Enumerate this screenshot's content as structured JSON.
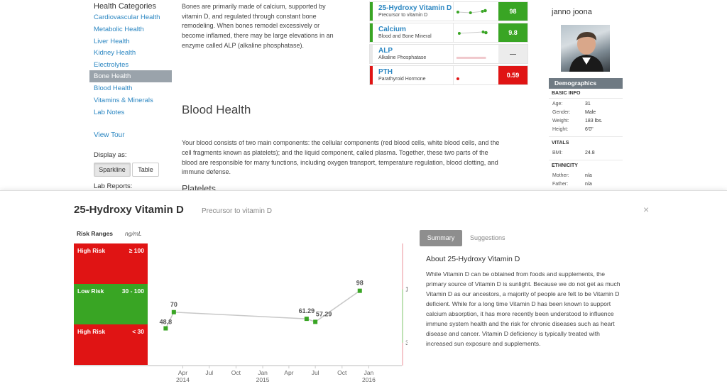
{
  "sidebar": {
    "heading": "Health Categories",
    "items": [
      "Cardiovascular Health",
      "Metabolic Health",
      "Liver Health",
      "Kidney Health",
      "Electrolytes",
      "Bone Health",
      "Blood Health",
      "Vitamins & Minerals",
      "Lab Notes"
    ],
    "view_tour": "View Tour",
    "display_as": "Display as:",
    "sparkline": "Sparkline",
    "table": "Table",
    "lab_reports": "Lab Reports:"
  },
  "main": {
    "bone_lines": [
      "Bones are primarily made of calcium, supported by",
      "vitamin D, and regulated through constant bone",
      "remodeling. When bones remodel excessively or",
      "become inflamed, there may be large elevations in an",
      "enzyme called ALP (alkaline phosphatase)."
    ],
    "blood_title": "Blood Health",
    "blood_lines": [
      "Your blood consists of two main components: the cellular components (red blood cells, white blood cells, and the",
      "cell fragments known as platelets); and the liquid component, called plasma. Together, these two parts of the",
      "blood are responsible for many functions, including oxygen transport, temperature regulation, blood clotting, and",
      "immune defense."
    ],
    "platelets": "Platelets"
  },
  "markers": [
    {
      "name": "25-Hydroxy Vitamin D",
      "desc": "Precursor to vitamin D",
      "value": "98",
      "status": "#39a524"
    },
    {
      "name": "Calcium",
      "desc": "Blood and Bone Mineral",
      "value": "9.8",
      "status": "#39a524"
    },
    {
      "name": "ALP",
      "desc": "Alkaline Phosphatase",
      "value": "—",
      "status": "#e8e8e8"
    },
    {
      "name": "PTH",
      "desc": "Parathyroid Hormone",
      "value": "0.59",
      "status": "#e01414"
    }
  ],
  "profile": {
    "name": "janno joona",
    "demographics": "Demographics",
    "basic_info": "BASIC INFO",
    "rows": [
      [
        "Age:",
        "31"
      ],
      [
        "Gender:",
        "Male"
      ],
      [
        "Weight:",
        "183 lbs."
      ],
      [
        "Height:",
        "6'0\""
      ]
    ],
    "vitals": "VITALS",
    "bmi": [
      "BMI:",
      "24.8"
    ],
    "ethnicity": "ETHNICITY",
    "eth_rows": [
      [
        "Mother:",
        "n/a"
      ],
      [
        "Father:",
        "n/a"
      ]
    ]
  },
  "detail": {
    "title": "25-Hydroxy Vitamin D",
    "subtitle": "Precursor to vitamin D",
    "close": "×",
    "risk_title": "Risk Ranges",
    "unit": "ng/mL",
    "bands": [
      {
        "label": "High Risk",
        "range": "≥ 100",
        "color": "#e01414"
      },
      {
        "label": "Low Risk",
        "range": "30 - 100",
        "color": "#39a524"
      },
      {
        "label": "High Risk",
        "range": "< 30",
        "color": "#e01414"
      }
    ],
    "tabs": [
      "Summary",
      "Suggestions"
    ],
    "about_title": "About 25-Hydroxy Vitamin D",
    "about_lines": [
      "While Vitamin D can be obtained from foods and supplements, the",
      "primary source of Vitamin D is sunlight. Because we do not get as much",
      "Vitamin D as our ancestors, a majority of people are felt to be Vitamin D",
      "deficient. While for a long time Vitamin D has been known to support",
      "calcium absorption, it has more recently been understood to influence",
      "immune system health and the risk for chronic diseases such as heart",
      "disease and cancer. Vitamin D deficiency is typically treated with",
      "increased sun exposure and supplements."
    ]
  },
  "chart_data": {
    "type": "line",
    "series": [
      {
        "x": [
          "2014-02",
          "2014-03",
          "2015-06",
          "2015-07",
          "2015-12"
        ],
        "y": [
          48.8,
          70,
          61.29,
          57.29,
          98
        ]
      }
    ],
    "data_labels": [
      "48.8",
      "70",
      "61.29",
      "57.29",
      "98"
    ],
    "x_ticks": [
      [
        "Apr",
        "2014"
      ],
      [
        "Jul",
        ""
      ],
      [
        "Oct",
        ""
      ],
      [
        "Jan",
        "2015"
      ],
      [
        "Apr",
        ""
      ],
      [
        "Jul",
        ""
      ],
      [
        "Oct",
        ""
      ],
      [
        "Jan",
        "2016"
      ]
    ],
    "ref_ticks": [
      "100",
      "30"
    ],
    "ylim": [
      0,
      160
    ],
    "colors": {
      "point": "#39a524",
      "line": "#c8c8c8"
    }
  }
}
